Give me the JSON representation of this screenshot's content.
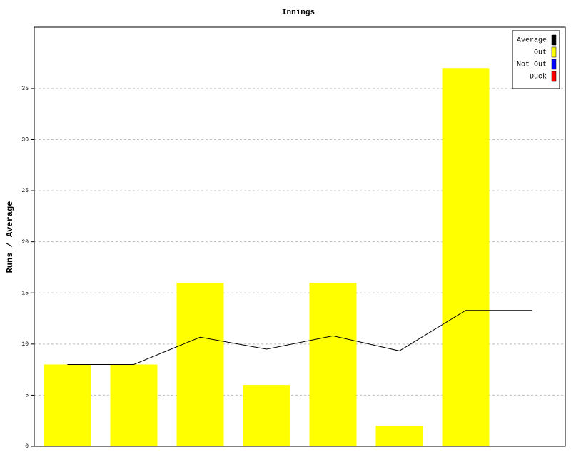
{
  "chart_data": {
    "type": "bar",
    "title": "Innings",
    "y_label": "Runs / Average",
    "categories": [
      null,
      null,
      null,
      null,
      null,
      null,
      null,
      null
    ],
    "series": [
      {
        "name": "Average",
        "color": "#000000",
        "type": "line",
        "values": [
          8,
          8,
          10.67,
          9.5,
          10.8,
          9.33,
          13.29,
          13.29
        ]
      },
      {
        "name": "Out",
        "color": "#ffff00",
        "type": "bar",
        "values": [
          8,
          8,
          16,
          6,
          16,
          2,
          37,
          null
        ]
      },
      {
        "name": "Not Out",
        "color": "#0000ff",
        "type": "bar",
        "values": [
          null,
          null,
          null,
          null,
          null,
          null,
          null,
          null
        ]
      },
      {
        "name": "Duck",
        "color": "#ff0000",
        "type": "bar",
        "values": [
          null,
          null,
          null,
          null,
          null,
          null,
          null,
          null
        ]
      }
    ],
    "ylim": [
      0,
      41
    ],
    "yticks": [
      0,
      5,
      10,
      15,
      20,
      25,
      30,
      35
    ],
    "grid": true,
    "legend": "top-right"
  }
}
